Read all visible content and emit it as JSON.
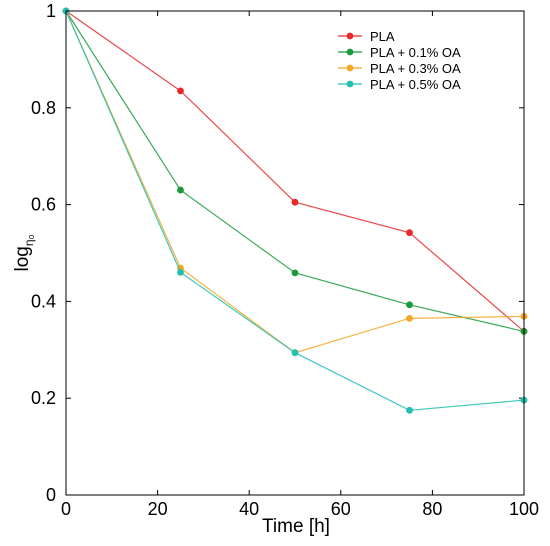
{
  "chart_data": {
    "type": "line",
    "x": [
      0,
      25,
      50,
      75,
      100
    ],
    "xlim": [
      0,
      100
    ],
    "ylim": [
      0,
      1
    ],
    "xticks": [
      "0",
      "20",
      "40",
      "60",
      "80",
      "100"
    ],
    "yticks": [
      "0",
      "0.2",
      "0.4",
      "0.6",
      "0.8",
      "1"
    ],
    "xlabel": "Time [h]",
    "ylabel_main": "log",
    "ylabel_sub": "η₀",
    "grid": false,
    "legend_position": "top-right",
    "series": [
      {
        "name": "PLA",
        "color": "#e8282a",
        "values": [
          1.0,
          0.835,
          0.605,
          0.542,
          0.338
        ]
      },
      {
        "name": "PLA + 0.1% OA",
        "color": "#1a9a3a",
        "values": [
          1.0,
          0.63,
          0.459,
          0.393,
          0.338
        ]
      },
      {
        "name": "PLA + 0.3% OA",
        "color": "#f5a623",
        "values": [
          1.0,
          0.469,
          0.294,
          0.365,
          0.369
        ]
      },
      {
        "name": "PLA + 0.5% OA",
        "color": "#20c0b0",
        "values": [
          1.0,
          0.46,
          0.294,
          0.175,
          0.196
        ]
      }
    ]
  }
}
